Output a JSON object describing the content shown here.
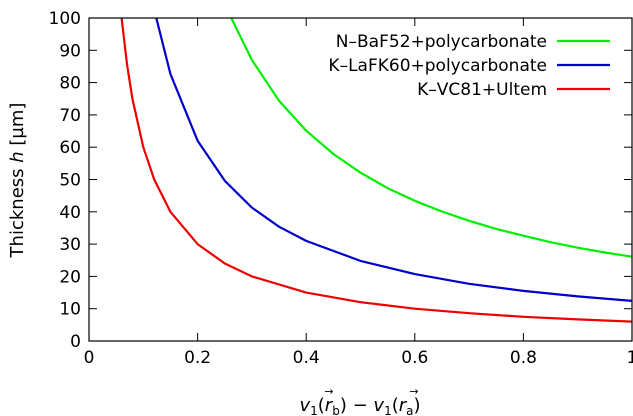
{
  "chart_data": {
    "type": "line",
    "title": "",
    "xlabel": "v1(r⃗b) − v1(r⃗a)",
    "xlabel_parts": {
      "v": "v",
      "sub1": "1",
      "open": "(",
      "r": "r",
      "arrow": "→",
      "sub_b": "b",
      "sub_a": "a",
      "close": ")",
      "minus": "−"
    },
    "ylabel": "Thickness h [µm]",
    "ylabel_parts": {
      "prefix": "Thickness",
      "var": "h",
      "unit": "[µm]"
    },
    "xlim": [
      0,
      1
    ],
    "ylim": [
      0,
      100
    ],
    "xticks": [
      0,
      0.2,
      0.4,
      0.6,
      0.8,
      1
    ],
    "xtick_labels": [
      "0",
      "0.2",
      "0.4",
      "0.6",
      "0.8",
      "1"
    ],
    "yticks": [
      0,
      10,
      20,
      30,
      40,
      50,
      60,
      70,
      80,
      90,
      100
    ],
    "ytick_labels": [
      "0",
      "10",
      "20",
      "30",
      "40",
      "50",
      "60",
      "70",
      "80",
      "90",
      "100"
    ],
    "grid": false,
    "legend_position": "top-right",
    "series": [
      {
        "name": "N–BaF52+polycarbonate",
        "color": "#00ee00",
        "x": [
          0.262,
          0.3,
          0.35,
          0.4,
          0.45,
          0.5,
          0.55,
          0.6,
          0.65,
          0.7,
          0.75,
          0.8,
          0.85,
          0.9,
          0.95,
          1.0
        ],
        "y": [
          100,
          87,
          74.4,
          65.1,
          57.9,
          52.1,
          47.3,
          43.4,
          40.1,
          37.2,
          34.7,
          32.6,
          30.6,
          28.9,
          27.4,
          26.1
        ]
      },
      {
        "name": "K–LaFK60+polycarbonate",
        "color": "#0000cc",
        "x": [
          0.124,
          0.15,
          0.2,
          0.25,
          0.3,
          0.35,
          0.4,
          0.5,
          0.6,
          0.7,
          0.8,
          0.9,
          1.0
        ],
        "y": [
          100,
          82.7,
          62,
          49.6,
          41.3,
          35.4,
          31,
          24.8,
          20.7,
          17.7,
          15.5,
          13.8,
          12.4
        ]
      },
      {
        "name": "K–VC81+Ultem",
        "color": "#ee0000",
        "x": [
          0.06,
          0.07,
          0.08,
          0.1,
          0.12,
          0.15,
          0.2,
          0.25,
          0.3,
          0.4,
          0.5,
          0.6,
          0.7,
          0.8,
          0.9,
          1.0
        ],
        "y": [
          100,
          85.7,
          75,
          60,
          50,
          40,
          30,
          24,
          20,
          15,
          12,
          10,
          8.6,
          7.5,
          6.7,
          6
        ]
      }
    ]
  }
}
